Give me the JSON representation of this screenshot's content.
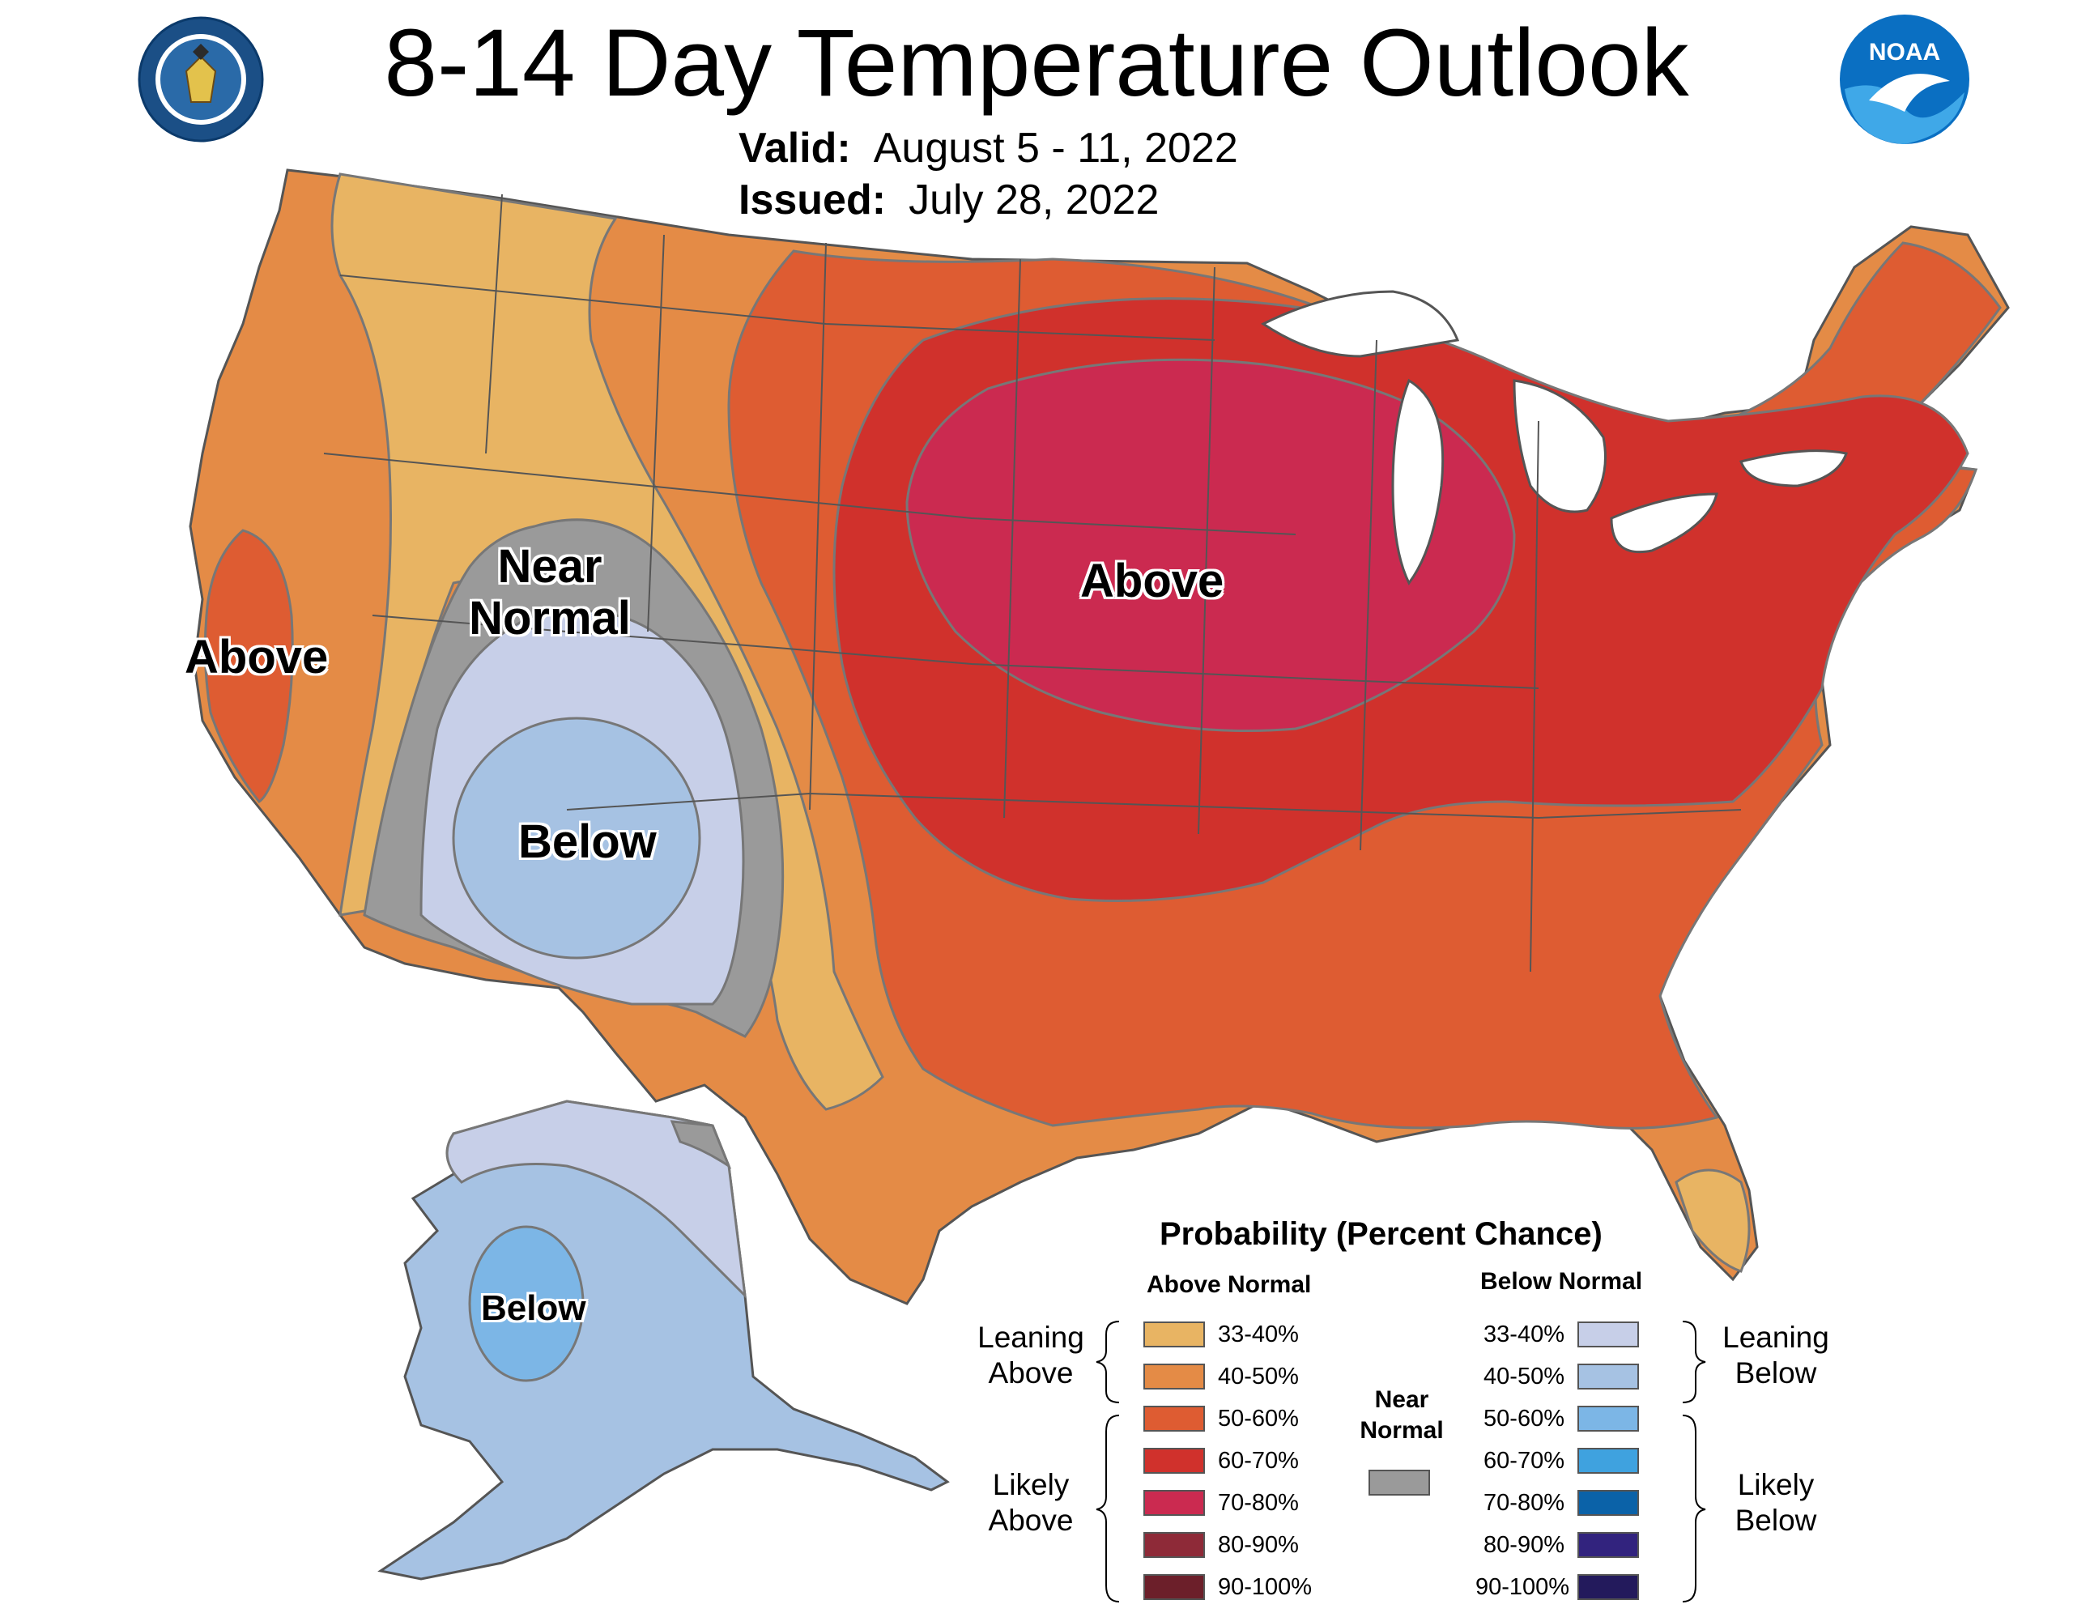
{
  "title": "8-14 Day Temperature Outlook",
  "valid": {
    "label": "Valid:",
    "value": "August 5 - 11, 2022"
  },
  "issued": {
    "label": "Issued:",
    "value": "July 28, 2022"
  },
  "logos": {
    "left": "department-of-commerce-seal",
    "right": "noaa-logo",
    "noaa_text": "NOAA"
  },
  "map_labels": {
    "west_coast_above": "Above",
    "near_normal_line1": "Near",
    "near_normal_line2": "Normal",
    "southwest_below": "Below",
    "central_above": "Above",
    "alaska_below": "Below"
  },
  "legend": {
    "title": "Probability (Percent Chance)",
    "above_header": "Above Normal",
    "below_header": "Below Normal",
    "near_header_line1": "Near",
    "near_header_line2": "Normal",
    "leaning_above": [
      "Leaning",
      "Above"
    ],
    "likely_above": [
      "Likely",
      "Above"
    ],
    "leaning_below": [
      "Leaning",
      "Below"
    ],
    "likely_below": [
      "Likely",
      "Below"
    ],
    "above_ranges": [
      {
        "label": "33-40%",
        "color": "#E8B463"
      },
      {
        "label": "40-50%",
        "color": "#E48B46"
      },
      {
        "label": "50-60%",
        "color": "#DE5C32"
      },
      {
        "label": "60-70%",
        "color": "#D0312C"
      },
      {
        "label": "70-80%",
        "color": "#CB2A50"
      },
      {
        "label": "80-90%",
        "color": "#8E2A38"
      },
      {
        "label": "90-100%",
        "color": "#6C1F2A"
      }
    ],
    "below_ranges": [
      {
        "label": "33-40%",
        "color": "#C7CFE8"
      },
      {
        "label": "40-50%",
        "color": "#A6C2E3"
      },
      {
        "label": "50-60%",
        "color": "#7CB6E6"
      },
      {
        "label": "60-70%",
        "color": "#3FA2DF"
      },
      {
        "label": "70-80%",
        "color": "#0B62A8"
      },
      {
        "label": "80-90%",
        "color": "#32237E"
      },
      {
        "label": "90-100%",
        "color": "#231A5C"
      }
    ],
    "near_color": "#9A9A9A"
  }
}
